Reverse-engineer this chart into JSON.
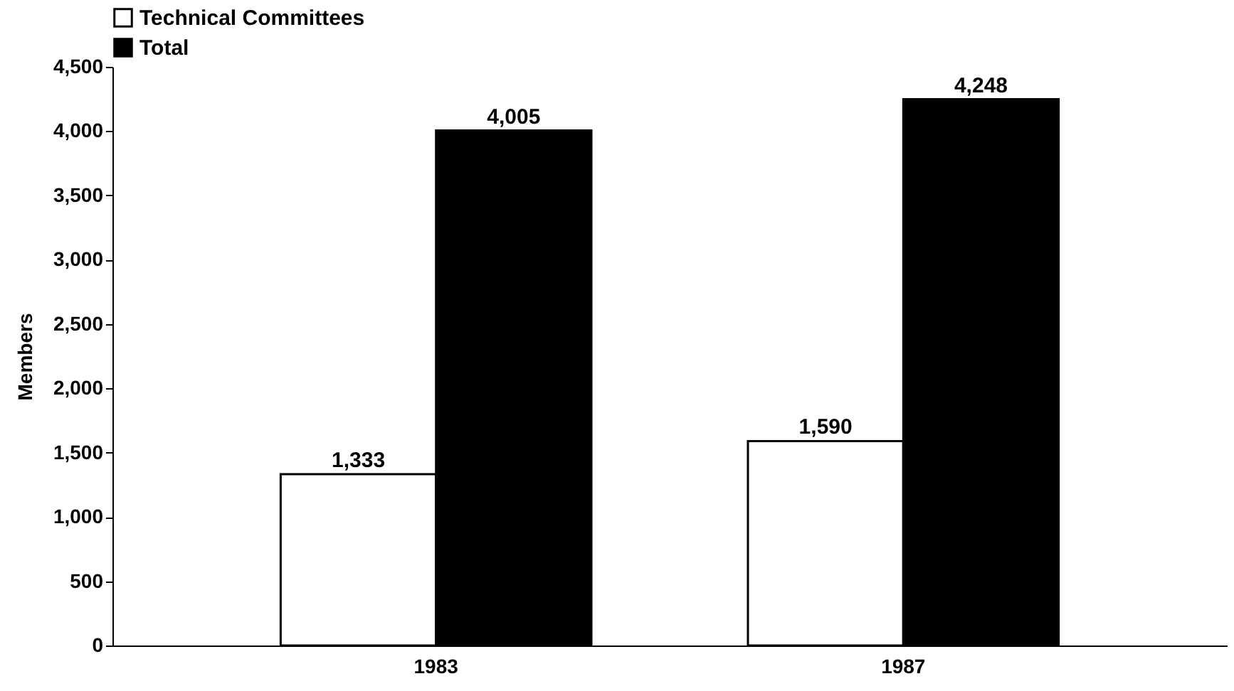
{
  "chart_data": {
    "type": "bar",
    "ylabel": "Members",
    "categories": [
      "1983",
      "1987"
    ],
    "series": [
      {
        "name": "Technical Committees",
        "color": "#ffffff",
        "values": [
          1333,
          1590
        ],
        "value_labels": [
          "1,333",
          "1,590"
        ]
      },
      {
        "name": "Total",
        "color": "#000000",
        "values": [
          4005,
          4248
        ],
        "value_labels": [
          "4,005",
          "4,248"
        ]
      }
    ],
    "ylim": [
      0,
      4500
    ],
    "yticks": [
      0,
      500,
      {
        "value": 1000,
        "label": "1,000"
      },
      {
        "value": 1500,
        "label": "1,500"
      },
      {
        "value": 2000,
        "label": "2,000"
      },
      {
        "value": 2500,
        "label": "2,500"
      },
      {
        "value": 3000,
        "label": "3,000"
      },
      {
        "value": 3500,
        "label": "3,500"
      },
      {
        "value": 4000,
        "label": "4,000"
      },
      {
        "value": 4500,
        "label": "4,500"
      }
    ],
    "legend": "top",
    "grid": false
  }
}
